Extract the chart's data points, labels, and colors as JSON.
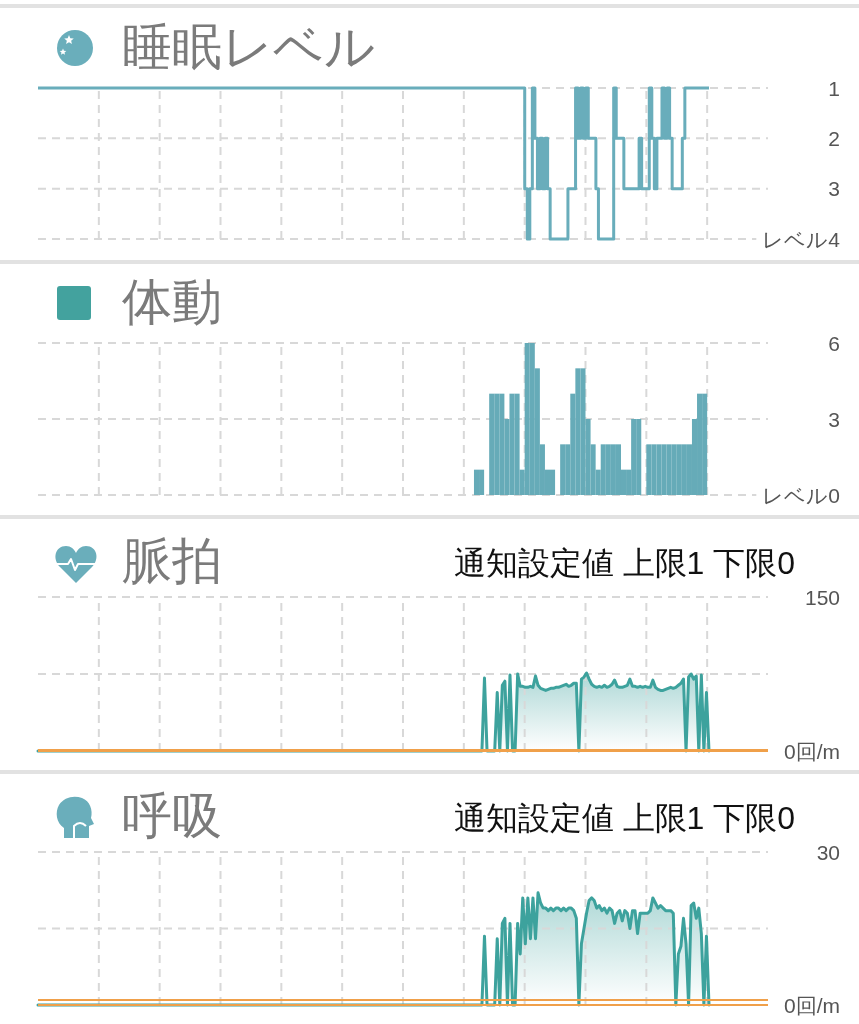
{
  "chart_data": [
    {
      "type": "step",
      "title": "睡眠レベル",
      "categories": [
        null,
        null,
        null,
        null,
        null,
        null,
        null,
        null,
        null,
        null,
        null,
        null,
        null,
        null,
        null,
        null,
        null,
        null,
        null,
        null,
        null,
        null,
        null,
        null,
        null,
        null,
        null,
        null,
        null,
        null,
        null,
        null,
        null,
        null,
        null,
        null,
        null,
        null,
        null,
        null,
        null,
        null,
        null,
        null,
        null,
        null,
        null,
        null,
        null,
        null,
        null,
        null,
        null,
        null,
        null,
        null,
        null,
        null,
        null,
        null,
        null,
        null,
        null,
        null,
        null,
        null,
        null,
        null,
        null,
        null,
        null,
        null,
        null,
        null,
        null,
        null,
        null,
        null,
        null,
        null,
        null,
        null,
        null,
        null,
        null,
        null,
        null,
        null,
        null,
        null,
        null,
        null,
        null,
        null,
        null,
        null,
        null,
        null,
        null,
        null,
        null,
        null,
        null,
        null,
        null,
        null,
        null,
        null,
        null,
        null,
        null,
        null,
        null,
        null,
        null,
        null,
        null,
        null,
        null,
        null,
        null,
        null,
        null,
        null,
        null,
        null,
        null,
        null,
        null,
        null,
        null,
        null,
        null,
        null,
        null,
        null,
        null,
        null,
        null,
        null,
        null,
        null,
        null,
        null,
        null,
        null,
        null,
        null,
        null,
        null,
        null,
        null,
        null,
        null,
        null,
        null,
        null,
        null,
        null,
        null,
        null,
        null,
        null,
        null,
        null,
        null,
        null,
        null,
        null,
        null,
        null,
        null,
        null,
        null,
        null,
        null,
        null,
        null,
        null,
        null,
        null,
        null,
        null,
        null,
        null,
        null,
        null,
        null,
        null,
        null,
        null,
        null,
        null,
        null,
        null,
        null,
        null,
        null,
        null,
        null,
        null,
        null,
        null,
        null,
        null,
        null,
        null,
        null,
        null,
        null,
        null,
        null,
        null,
        null,
        null,
        null,
        null,
        null,
        null,
        null,
        null,
        null,
        null,
        null,
        null,
        null,
        null,
        null,
        null,
        null,
        null,
        null,
        null,
        null,
        null,
        null,
        null,
        null,
        null,
        null,
        null,
        null,
        null,
        null,
        null,
        null,
        null,
        null,
        null,
        null,
        null,
        null,
        null,
        null,
        null,
        null,
        null,
        null,
        null,
        null,
        null,
        null,
        null,
        null,
        null
      ],
      "values": [
        1,
        1,
        1,
        1,
        1,
        1,
        1,
        1,
        1,
        1,
        1,
        1,
        1,
        1,
        1,
        1,
        1,
        1,
        1,
        1,
        1,
        1,
        1,
        1,
        1,
        1,
        1,
        1,
        1,
        1,
        1,
        1,
        1,
        1,
        1,
        1,
        1,
        1,
        1,
        1,
        1,
        1,
        1,
        1,
        1,
        1,
        1,
        1,
        1,
        1,
        1,
        1,
        1,
        1,
        1,
        1,
        1,
        1,
        1,
        1,
        1,
        1,
        1,
        1,
        1,
        1,
        1,
        1,
        1,
        1,
        1,
        1,
        1,
        1,
        1,
        1,
        1,
        1,
        1,
        1,
        1,
        1,
        1,
        1,
        1,
        1,
        1,
        1,
        1,
        1,
        1,
        1,
        1,
        1,
        1,
        1,
        1,
        1,
        1,
        1,
        1,
        1,
        1,
        1,
        1,
        1,
        1,
        1,
        1,
        1,
        1,
        1,
        1,
        1,
        1,
        1,
        1,
        1,
        1,
        1,
        1,
        1,
        1,
        1,
        1,
        1,
        1,
        1,
        1,
        1,
        1,
        1,
        1,
        1,
        1,
        1,
        1,
        1,
        1,
        1,
        1,
        1,
        1,
        1,
        1,
        1,
        1,
        1,
        1,
        1,
        1,
        1,
        1,
        1,
        1,
        1,
        1,
        1,
        1,
        1,
        1,
        1,
        1,
        1,
        1,
        1,
        1,
        1,
        1,
        1,
        1,
        1,
        1,
        1,
        1,
        1,
        1,
        1,
        1,
        1,
        1,
        1,
        1,
        1,
        1,
        1,
        1,
        1,
        1,
        1,
        1,
        1,
        3,
        4,
        3,
        1,
        2,
        3,
        2,
        3,
        2,
        3,
        4,
        4,
        4,
        4,
        4,
        4,
        4,
        3,
        3,
        3,
        1,
        2,
        1,
        2,
        1,
        2,
        2,
        2,
        3,
        4,
        4,
        4,
        4,
        4,
        4,
        1,
        2,
        2,
        2,
        3,
        3,
        3,
        3,
        3,
        3,
        2,
        3,
        3,
        3,
        1,
        2,
        3,
        2,
        2,
        1,
        2,
        1,
        2,
        3,
        3,
        3,
        3,
        2,
        1,
        1,
        1,
        1,
        1,
        1,
        1,
        1,
        1,
        1
      ],
      "color": "#69adbb",
      "ylim": [
        4,
        1
      ],
      "yticks": [
        1,
        2,
        3,
        {
          "value": 4,
          "label": "レベル4"
        }
      ],
      "grid": true
    },
    {
      "type": "bar",
      "title": "体動",
      "categories": [
        null,
        null,
        null,
        null,
        null,
        null,
        null,
        null,
        null,
        null,
        null,
        null,
        null,
        null,
        null,
        null,
        null,
        null,
        null,
        null,
        null,
        null,
        null,
        null,
        null,
        null,
        null,
        null,
        null,
        null,
        null,
        null,
        null,
        null,
        null,
        null,
        null,
        null,
        null,
        null,
        null,
        null,
        null,
        null,
        null,
        null,
        null,
        null,
        null,
        null,
        null,
        null,
        null,
        null,
        null,
        null,
        null,
        null,
        null,
        null,
        null,
        null,
        null,
        null,
        null,
        null,
        null,
        null,
        null,
        null,
        null,
        null,
        null,
        null,
        null,
        null,
        null,
        null,
        null,
        null,
        null,
        null,
        null,
        null,
        null,
        null,
        null,
        null,
        null,
        null,
        null,
        null,
        null,
        null,
        null,
        null,
        null,
        null,
        null,
        null,
        null,
        null,
        null,
        null,
        null,
        null,
        null,
        null,
        null,
        null,
        null,
        null,
        null,
        null,
        null,
        null,
        null,
        null,
        null,
        null,
        null,
        null,
        null,
        null,
        null,
        null,
        null,
        null,
        null,
        null,
        null,
        null,
        null,
        null,
        null,
        null,
        null,
        null,
        null,
        null,
        null,
        null,
        null,
        null
      ],
      "values": [
        null,
        null,
        null,
        null,
        null,
        null,
        null,
        null,
        null,
        null,
        null,
        null,
        null,
        null,
        null,
        null,
        null,
        null,
        null,
        null,
        null,
        null,
        null,
        null,
        null,
        null,
        null,
        null,
        null,
        null,
        null,
        null,
        null,
        null,
        null,
        null,
        null,
        null,
        null,
        null,
        null,
        null,
        null,
        null,
        null,
        null,
        null,
        null,
        null,
        null,
        null,
        null,
        null,
        null,
        null,
        null,
        null,
        null,
        null,
        null,
        null,
        null,
        null,
        null,
        null,
        null,
        null,
        null,
        null,
        null,
        null,
        null,
        null,
        null,
        null,
        null,
        null,
        null,
        null,
        null,
        null,
        null,
        null,
        null,
        null,
        null,
        1,
        1,
        null,
        4,
        4,
        4,
        3,
        4,
        4,
        1,
        6,
        6,
        5,
        2,
        1,
        1,
        null,
        2,
        2,
        4,
        5,
        5,
        3,
        2,
        1,
        2,
        2,
        2,
        2,
        1,
        1,
        3,
        3,
        null,
        2,
        2,
        2,
        2,
        2,
        2,
        2,
        2,
        2,
        3,
        4,
        4,
        null,
        null,
        null,
        null,
        null,
        null,
        null,
        null,
        null,
        null,
        null,
        null
      ],
      "color": "#66abb8",
      "ylim": [
        0,
        6
      ],
      "yticks": [
        {
          "value": 0,
          "label": "レベル0"
        },
        3,
        6
      ],
      "grid": true
    },
    {
      "type": "area",
      "title": "脈拍",
      "subtitle": "通知設定値 上限1 下限0",
      "categories": [
        null,
        null,
        null,
        null,
        null,
        null,
        null,
        null,
        null,
        null,
        null,
        null,
        null,
        null,
        null,
        null,
        null,
        null,
        null,
        null,
        null,
        null,
        null,
        null,
        null,
        null,
        null,
        null,
        null,
        null,
        null,
        null,
        null,
        null,
        null,
        null,
        null,
        null,
        null,
        null,
        null,
        null,
        null,
        null,
        null,
        null,
        null,
        null,
        null,
        null,
        null,
        null,
        null,
        null,
        null,
        null,
        null,
        null,
        null,
        null,
        null,
        null,
        null,
        null,
        null,
        null,
        null,
        null,
        null,
        null,
        null,
        null,
        null,
        null,
        null,
        null,
        null,
        null,
        null,
        null,
        null,
        null,
        null,
        null,
        null,
        null,
        null,
        null,
        null,
        null,
        null,
        null,
        null,
        null,
        null,
        null,
        null,
        null,
        null,
        null,
        null,
        null,
        null,
        null,
        null,
        null,
        null,
        null,
        null,
        null,
        null,
        null,
        null,
        null,
        null,
        null,
        null,
        null,
        null,
        null,
        null,
        null,
        null,
        null,
        null,
        null,
        null,
        null,
        null,
        null,
        null,
        null,
        null,
        null,
        null,
        null,
        null,
        null,
        null,
        null,
        null,
        null,
        null,
        null,
        null,
        null,
        null,
        null,
        null,
        null,
        null,
        null,
        null,
        null,
        null,
        null,
        null,
        null,
        null,
        null,
        null,
        null,
        null,
        null,
        null,
        null,
        null,
        null,
        null,
        null,
        null,
        null,
        null,
        null,
        null,
        null,
        null,
        null,
        null,
        null,
        null,
        null,
        null,
        null,
        null,
        null,
        null,
        null,
        null,
        null,
        null,
        null,
        null,
        null,
        null,
        null,
        null,
        null,
        null,
        null,
        null,
        null,
        null,
        null,
        null,
        null,
        null,
        null,
        null,
        null,
        null,
        null,
        null,
        null,
        null,
        null,
        null,
        null,
        null,
        null,
        null,
        null,
        null,
        null,
        null,
        null,
        null,
        null,
        null,
        null,
        null,
        null,
        null,
        null,
        null,
        null,
        null,
        null,
        null,
        null,
        null,
        null,
        null,
        null,
        null,
        null,
        null,
        null,
        null,
        null,
        null,
        null,
        null,
        null,
        null,
        null,
        null,
        null,
        null,
        null,
        null,
        null,
        null,
        null
      ],
      "values": [
        0,
        0,
        0,
        0,
        0,
        0,
        0,
        0,
        0,
        0,
        0,
        0,
        0,
        0,
        0,
        0,
        0,
        0,
        0,
        0,
        0,
        0,
        0,
        0,
        0,
        0,
        0,
        0,
        0,
        0,
        0,
        0,
        0,
        0,
        0,
        0,
        0,
        0,
        0,
        0,
        0,
        0,
        0,
        0,
        0,
        0,
        0,
        0,
        0,
        0,
        0,
        0,
        0,
        0,
        0,
        0,
        0,
        0,
        0,
        0,
        0,
        0,
        0,
        0,
        0,
        0,
        0,
        0,
        0,
        0,
        0,
        0,
        0,
        0,
        0,
        0,
        0,
        0,
        0,
        0,
        0,
        0,
        0,
        0,
        0,
        0,
        0,
        0,
        0,
        0,
        0,
        0,
        0,
        0,
        0,
        0,
        0,
        0,
        0,
        0,
        0,
        0,
        0,
        0,
        0,
        0,
        0,
        0,
        0,
        0,
        0,
        0,
        0,
        0,
        0,
        0,
        0,
        0,
        0,
        0,
        0,
        0,
        0,
        0,
        0,
        0,
        0,
        0,
        0,
        0,
        0,
        0,
        0,
        0,
        0,
        0,
        0,
        0,
        0,
        0,
        0,
        0,
        0,
        0,
        0,
        0,
        0,
        0,
        0,
        0,
        0,
        0,
        0,
        0,
        0,
        0,
        0,
        0,
        0,
        0,
        0,
        0,
        0,
        0,
        0,
        0,
        0,
        0,
        0,
        0,
        0,
        0,
        0,
        0,
        0,
        71,
        0,
        0,
        0,
        0,
        57,
        0,
        64,
        68,
        0,
        74,
        0,
        0,
        75,
        63,
        63,
        62,
        62,
        63,
        62,
        73,
        64,
        61,
        60,
        59,
        60,
        61,
        61,
        62,
        62,
        63,
        64,
        65,
        63,
        64,
        66,
        66,
        0,
        70,
        72,
        76,
        70,
        65,
        63,
        62,
        63,
        62,
        64,
        62,
        63,
        65,
        69,
        63,
        62,
        62,
        63,
        64,
        70,
        63,
        63,
        62,
        63,
        62,
        63,
        62,
        62,
        69,
        62,
        60,
        59,
        59,
        60,
        61,
        62,
        61,
        62,
        64,
        66,
        70,
        0,
        72,
        75,
        70,
        73,
        0,
        74,
        0,
        57,
        0
      ],
      "color": "#3da29d",
      "ylim": [
        0,
        150
      ],
      "yticks": [
        {
          "value": 0,
          "label": "0回/m"
        },
        {
          "value": 75,
          "label": null
        },
        150
      ],
      "ref_lines": [
        {
          "axis": "y",
          "value": 1,
          "color": "#f0a04a"
        },
        {
          "axis": "y",
          "value": 0,
          "color": "#f0a04a"
        }
      ],
      "grid": true
    },
    {
      "type": "area",
      "title": "呼吸",
      "subtitle": "通知設定値 上限1 下限0",
      "categories": [
        null,
        null,
        null,
        null,
        null,
        null,
        null,
        null,
        null,
        null,
        null,
        null,
        null,
        null,
        null,
        null,
        null,
        null,
        null,
        null,
        null,
        null,
        null,
        null,
        null,
        null,
        null,
        null,
        null,
        null,
        null,
        null,
        null,
        null,
        null,
        null,
        null,
        null,
        null,
        null,
        null,
        null,
        null,
        null,
        null,
        null,
        null,
        null,
        null,
        null,
        null,
        null,
        null,
        null,
        null,
        null,
        null,
        null,
        null,
        null,
        null,
        null,
        null,
        null,
        null,
        null,
        null,
        null,
        null,
        null,
        null,
        null,
        null,
        null,
        null,
        null,
        null,
        null,
        null,
        null,
        null,
        null,
        null,
        null,
        null,
        null,
        null,
        null,
        null,
        null,
        null,
        null,
        null,
        null,
        null,
        null,
        null,
        null,
        null,
        null,
        null,
        null,
        null,
        null,
        null,
        null,
        null,
        null,
        null,
        null,
        null,
        null,
        null,
        null,
        null,
        null,
        null,
        null,
        null,
        null,
        null,
        null,
        null,
        null,
        null,
        null,
        null,
        null,
        null,
        null,
        null,
        null,
        null,
        null,
        null,
        null,
        null,
        null,
        null,
        null,
        null,
        null,
        null,
        null,
        null,
        null,
        null,
        null,
        null,
        null,
        null,
        null,
        null,
        null,
        null,
        null,
        null,
        null,
        null,
        null,
        null,
        null,
        null,
        null,
        null,
        null,
        null,
        null,
        null,
        null,
        null,
        null,
        null,
        null,
        null,
        null,
        null,
        null,
        null,
        null,
        null,
        null,
        null,
        null,
        null,
        null,
        null,
        null,
        null,
        null,
        null,
        null,
        null,
        null,
        null,
        null,
        null,
        null,
        null,
        null,
        null,
        null,
        null,
        null,
        null,
        null,
        null,
        null,
        null,
        null,
        null,
        null,
        null,
        null,
        null,
        null,
        null,
        null,
        null,
        null,
        null,
        null,
        null,
        null,
        null,
        null,
        null,
        null,
        null,
        null,
        null,
        null,
        null,
        null,
        null,
        null,
        null,
        null,
        null,
        null,
        null,
        null,
        null,
        null,
        null,
        null,
        null,
        null,
        null,
        null,
        null,
        null,
        null,
        null,
        null,
        null,
        null,
        null,
        null,
        null,
        null,
        null,
        null,
        null
      ],
      "values": [
        0,
        0,
        0,
        0,
        0,
        0,
        0,
        0,
        0,
        0,
        0,
        0,
        0,
        0,
        0,
        0,
        0,
        0,
        0,
        0,
        0,
        0,
        0,
        0,
        0,
        0,
        0,
        0,
        0,
        0,
        0,
        0,
        0,
        0,
        0,
        0,
        0,
        0,
        0,
        0,
        0,
        0,
        0,
        0,
        0,
        0,
        0,
        0,
        0,
        0,
        0,
        0,
        0,
        0,
        0,
        0,
        0,
        0,
        0,
        0,
        0,
        0,
        0,
        0,
        0,
        0,
        0,
        0,
        0,
        0,
        0,
        0,
        0,
        0,
        0,
        0,
        0,
        0,
        0,
        0,
        0,
        0,
        0,
        0,
        0,
        0,
        0,
        0,
        0,
        0,
        0,
        0,
        0,
        0,
        0,
        0,
        0,
        0,
        0,
        0,
        0,
        0,
        0,
        0,
        0,
        0,
        0,
        0,
        0,
        0,
        0,
        0,
        0,
        0,
        0,
        0,
        0,
        0,
        0,
        0,
        0,
        0,
        0,
        0,
        0,
        0,
        0,
        0,
        0,
        0,
        0,
        0,
        0,
        0,
        0,
        0,
        0,
        0,
        0,
        0,
        0,
        0,
        0,
        0,
        0,
        0,
        0,
        0,
        0,
        0,
        0,
        0,
        0,
        0,
        0,
        0,
        0,
        0,
        0,
        0,
        0,
        0,
        0,
        0,
        0,
        0,
        0,
        0,
        0,
        0,
        0,
        0,
        0,
        0,
        0,
        13.5,
        0,
        0,
        0,
        0,
        13,
        0,
        16,
        17,
        0,
        16,
        0,
        0,
        16,
        10,
        21,
        12,
        21,
        13,
        21,
        13,
        22,
        20,
        19,
        19,
        18.5,
        19,
        18.5,
        19,
        19,
        18.5,
        19,
        18.5,
        19,
        19,
        18.5,
        17,
        0,
        12,
        15,
        18,
        20.5,
        21,
        20.5,
        19,
        19.5,
        18.5,
        19,
        18,
        19,
        18.5,
        16,
        18,
        18.5,
        16.5,
        18.5,
        18,
        15,
        18.5,
        18.5,
        14,
        18,
        18,
        18,
        18,
        18.5,
        21,
        20,
        19,
        19.5,
        19,
        18.5,
        18.5,
        18.5,
        18,
        0,
        10,
        11.5,
        17,
        12,
        0,
        19.5,
        20,
        17,
        19,
        14,
        0,
        13.5,
        0
      ],
      "color": "#3da29d",
      "ylim": [
        0,
        30
      ],
      "yticks": [
        {
          "value": 0,
          "label": "0回/m"
        },
        {
          "value": 15,
          "label": null
        },
        30
      ],
      "ref_lines": [
        {
          "axis": "y",
          "value": 1,
          "color": "#f0a04a"
        },
        {
          "axis": "y",
          "value": 0,
          "color": "#f0a04a"
        }
      ],
      "grid": true
    }
  ]
}
